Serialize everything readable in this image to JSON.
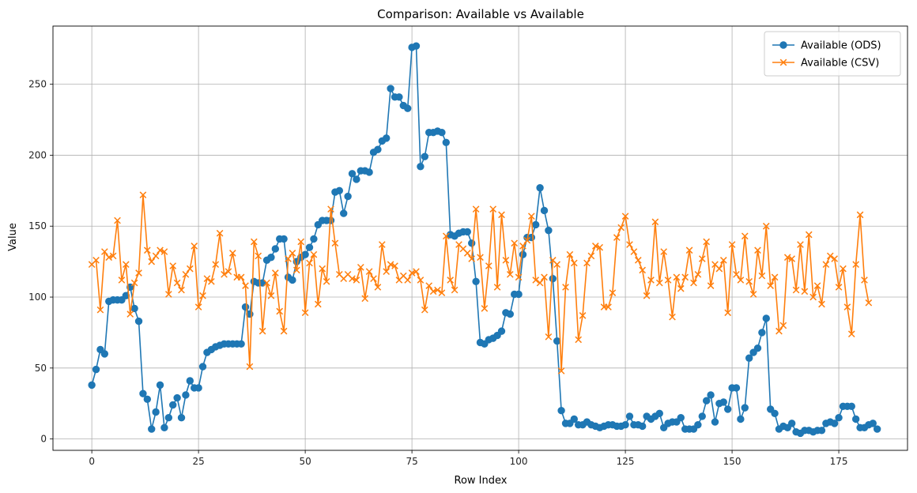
{
  "chart_data": {
    "type": "line",
    "title": "Comparison: Available vs Available",
    "xlabel": "Row Index",
    "ylabel": "Value",
    "xlim": [
      -9.1,
      191.1
    ],
    "ylim": [
      -8,
      291
    ],
    "xticks": [
      0,
      25,
      50,
      75,
      100,
      125,
      150,
      175
    ],
    "yticks": [
      0,
      50,
      100,
      150,
      200,
      250
    ],
    "grid": true,
    "legend_position": "top-right",
    "series": [
      {
        "name": "Available (ODS)",
        "color": "#1f77b4",
        "marker": "circle",
        "values": [
          38,
          49,
          63,
          60,
          97,
          98,
          98,
          98,
          101,
          107,
          92,
          83,
          32,
          28,
          7,
          19,
          38,
          8,
          15,
          24,
          29,
          15,
          31,
          41,
          36,
          36,
          51,
          61,
          63,
          65,
          66,
          67,
          67,
          67,
          67,
          67,
          93,
          88,
          111,
          110,
          110,
          126,
          128,
          134,
          141,
          141,
          114,
          112,
          125,
          128,
          130,
          135,
          141,
          151,
          154,
          154,
          154,
          174,
          175,
          159,
          171,
          187,
          183,
          189,
          189,
          188,
          202,
          204,
          210,
          212,
          247,
          241,
          241,
          235,
          233,
          276,
          277,
          192,
          199,
          216,
          216,
          217,
          216,
          209,
          144,
          143,
          145,
          146,
          146,
          138,
          111,
          68,
          67,
          70,
          71,
          73,
          76,
          89,
          88,
          102,
          102,
          130,
          142,
          142,
          151,
          177,
          161,
          147,
          113,
          69,
          20,
          11,
          11,
          14,
          10,
          10,
          12,
          10,
          9,
          8,
          9,
          10,
          10,
          9,
          9,
          10,
          16,
          10,
          10,
          9,
          16,
          14,
          16,
          18,
          8,
          11,
          12,
          12,
          15,
          7,
          7,
          7,
          10,
          16,
          27,
          31,
          12,
          25,
          26,
          21,
          36,
          36,
          14,
          22,
          57,
          61,
          64,
          75,
          85,
          21,
          18,
          7,
          9,
          8,
          11,
          5,
          4,
          6,
          6,
          5,
          6,
          6,
          11,
          12,
          11,
          15,
          23,
          23,
          23,
          14,
          8,
          8,
          10,
          11,
          7
        ]
      },
      {
        "name": "Available (CSV)",
        "color": "#ff7f0e",
        "marker": "x",
        "values": [
          123,
          126,
          91,
          132,
          128,
          129,
          154,
          112,
          123,
          88,
          110,
          117,
          172,
          133,
          125,
          129,
          133,
          132,
          102,
          122,
          110,
          105,
          116,
          120,
          136,
          93,
          101,
          113,
          111,
          123,
          145,
          116,
          118,
          131,
          114,
          114,
          108,
          51,
          139,
          129,
          76,
          110,
          101,
          117,
          90,
          76,
          127,
          131,
          119,
          139,
          89,
          124,
          130,
          95,
          120,
          111,
          162,
          138,
          116,
          113,
          116,
          113,
          112,
          121,
          99,
          118,
          113,
          107,
          137,
          118,
          123,
          122,
          112,
          115,
          112,
          117,
          118,
          112,
          91,
          108,
          104,
          105,
          103,
          143,
          112,
          105,
          137,
          134,
          131,
          127,
          162,
          128,
          92,
          122,
          162,
          107,
          158,
          126,
          116,
          138,
          114,
          136,
          140,
          157,
          112,
          110,
          114,
          72,
          126,
          123,
          48,
          107,
          130,
          124,
          70,
          87,
          124,
          129,
          136,
          135,
          93,
          93,
          103,
          142,
          149,
          157,
          137,
          132,
          126,
          119,
          101,
          112,
          153,
          110,
          132,
          112,
          86,
          114,
          106,
          114,
          133,
          110,
          116,
          127,
          139,
          108,
          123,
          120,
          126,
          89,
          137,
          116,
          112,
          143,
          111,
          102,
          133,
          115,
          150,
          108,
          114,
          76,
          80,
          128,
          127,
          105,
          137,
          104,
          144,
          100,
          108,
          95,
          123,
          129,
          127,
          107,
          120,
          93,
          74,
          123,
          158,
          112,
          96
        ]
      }
    ]
  }
}
